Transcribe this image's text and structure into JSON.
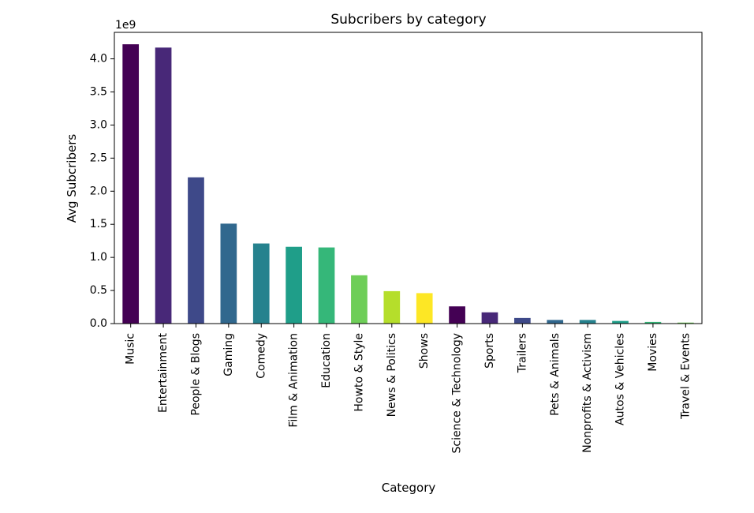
{
  "chart_data": {
    "type": "bar",
    "title": "Subcribers by category",
    "xlabel": "Category",
    "ylabel": "Avg Subcribers",
    "y_offset_label": "1e9",
    "ylim": [
      0,
      4.4
    ],
    "yticks": [
      0.0,
      0.5,
      1.0,
      1.5,
      2.0,
      2.5,
      3.0,
      3.5,
      4.0
    ],
    "ytick_labels": [
      "0.0",
      "0.5",
      "1.0",
      "1.5",
      "2.0",
      "2.5",
      "3.0",
      "3.5",
      "4.0"
    ],
    "grid": false,
    "categories": [
      "Music",
      "Entertainment",
      "People & Blogs",
      "Gaming",
      "Comedy",
      "Film & Animation",
      "Education",
      "Howto & Style",
      "News & Politics",
      "Shows",
      "Science & Technology",
      "Sports",
      "Trailers",
      "Pets & Animals",
      "Nonprofits & Activism",
      "Autos & Vehicles",
      "Movies",
      "Travel & Events"
    ],
    "values": [
      4.22,
      4.17,
      2.21,
      1.51,
      1.21,
      1.16,
      1.15,
      0.73,
      0.49,
      0.46,
      0.26,
      0.17,
      0.085,
      0.055,
      0.055,
      0.04,
      0.025,
      0.015
    ],
    "colors": [
      "#440154",
      "#482878",
      "#3e4989",
      "#31688e",
      "#26828e",
      "#1f9e89",
      "#35b779",
      "#6ece58",
      "#b5de2b",
      "#fde725",
      "#440154",
      "#482878",
      "#3e4989",
      "#31688e",
      "#26828e",
      "#1f9e89",
      "#35b779",
      "#6ece58"
    ]
  }
}
